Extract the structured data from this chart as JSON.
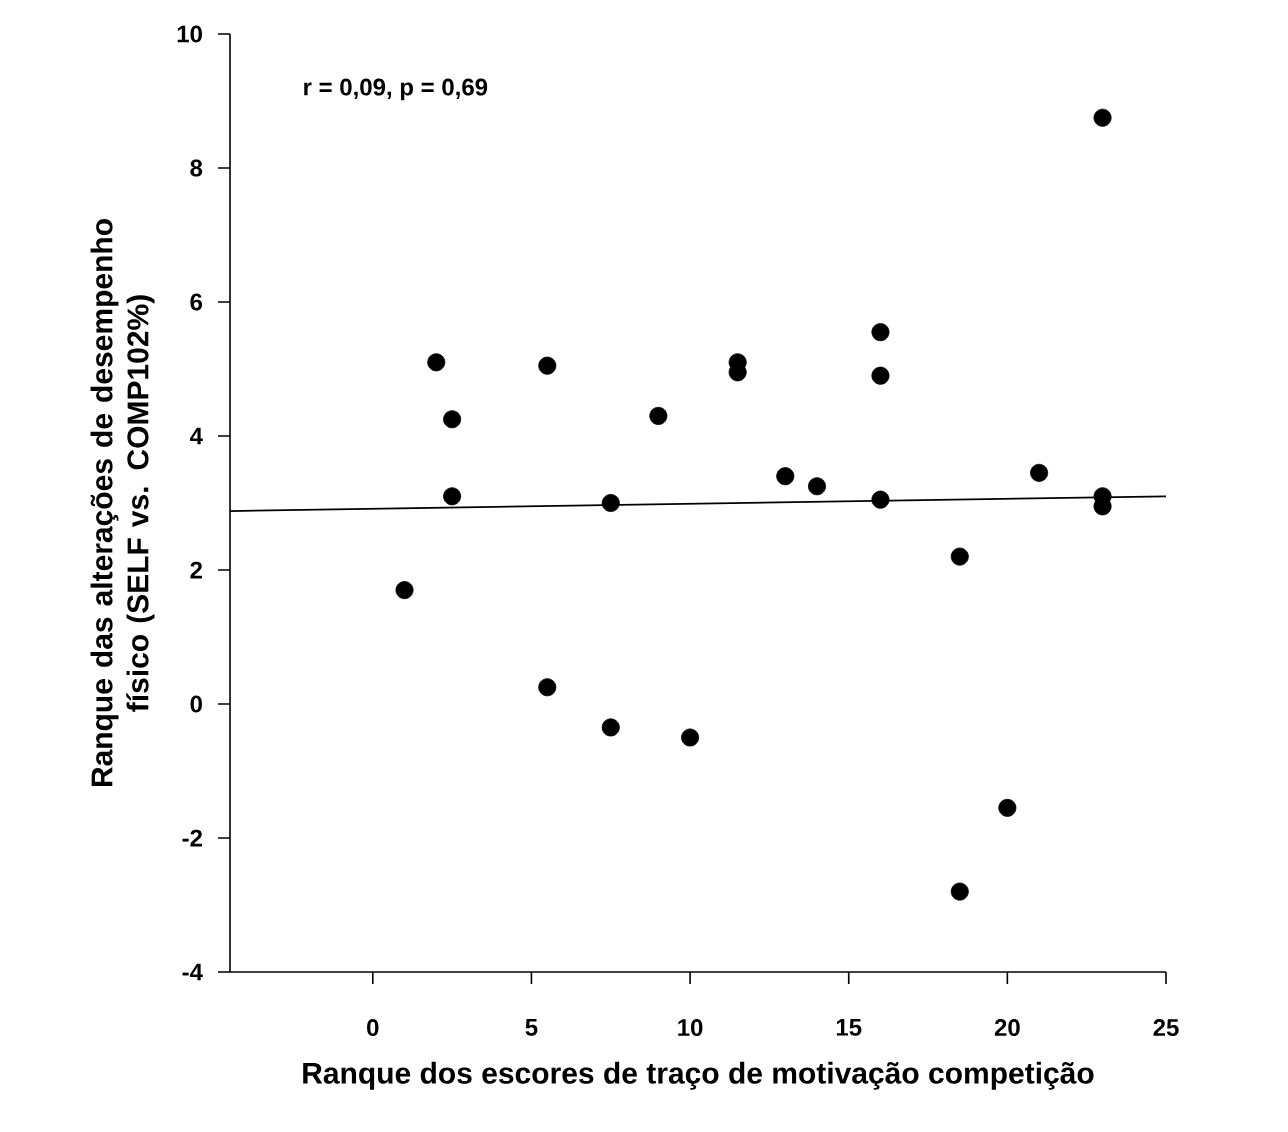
{
  "chart_data": {
    "type": "scatter",
    "xlabel": "Ranque dos escores de traço de motivação competição",
    "ylabel": "Ranque das alterações de desempenho físico (SELF vs. COMP102%)",
    "annotations": [
      "r = 0,09, p = 0,69"
    ],
    "xlim": [
      -4.5,
      25
    ],
    "xticks": [
      0,
      5,
      10,
      15,
      20,
      25
    ],
    "ylim": [
      -4,
      10
    ],
    "yticks": [
      -4,
      -2,
      0,
      2,
      4,
      6,
      8,
      10
    ],
    "series": [
      {
        "type": "scatter",
        "color": "#000000",
        "marker": "circle",
        "x": [
          1,
          2,
          2.5,
          2.5,
          5.5,
          5.5,
          7.5,
          7.5,
          9,
          10,
          11.5,
          11.5,
          13,
          14,
          16,
          16,
          16,
          18.5,
          18.5,
          20,
          21,
          23,
          23,
          23
        ],
        "values": [
          1.7,
          5.1,
          4.25,
          3.1,
          5.05,
          0.25,
          3.0,
          -0.35,
          4.3,
          -0.5,
          5.1,
          4.95,
          3.4,
          3.25,
          5.55,
          4.9,
          3.05,
          2.2,
          -2.8,
          -1.55,
          3.45,
          8.75,
          3.1,
          2.95
        ]
      },
      {
        "type": "line",
        "color": "#000000",
        "marker": "none",
        "x": [
          -4.5,
          25
        ],
        "values": [
          2.88,
          3.1
        ]
      }
    ]
  }
}
